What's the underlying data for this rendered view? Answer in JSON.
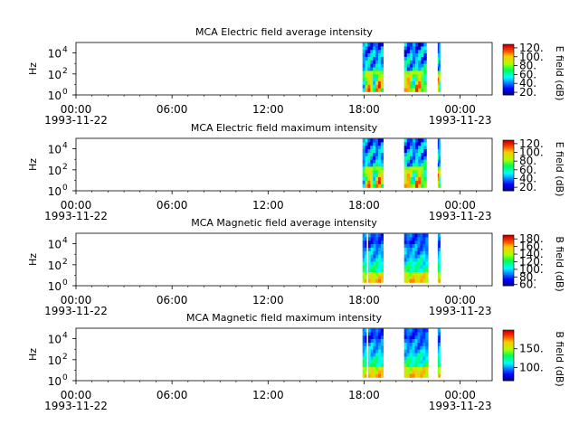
{
  "chart_data": [
    {
      "type": "heatmap",
      "title": "MCA  Electric field average intensity",
      "ylabel": "Hz",
      "y_scale": "log",
      "ylim": [
        1,
        100000
      ],
      "y_ticks": [
        {
          "value": 1,
          "base": "10",
          "exp": "0"
        },
        {
          "value": 100,
          "base": "10",
          "exp": "2"
        },
        {
          "value": 10000,
          "base": "10",
          "exp": "4"
        }
      ],
      "x_ticks": [
        {
          "hour": 0,
          "label": "00:00",
          "date": "1993-11-22"
        },
        {
          "hour": 6,
          "label": "06:00"
        },
        {
          "hour": 12,
          "label": "12:00"
        },
        {
          "hour": 18,
          "label": "18:00"
        },
        {
          "hour": 24,
          "label": "00:00",
          "date": "1993-11-23"
        }
      ],
      "data_intervals_hours": [
        [
          17.9,
          19.2
        ],
        [
          20.5,
          21.9
        ],
        [
          22.6,
          22.75
        ]
      ],
      "colorbar": {
        "label": "E field (dB)",
        "range": [
          14,
          128
        ],
        "ticks": [
          "20.",
          "40.",
          "60.",
          "80.",
          "100.",
          "120."
        ],
        "tick_values": [
          20,
          40,
          60,
          80,
          100,
          120
        ]
      },
      "intensity_profile": "high-low"
    },
    {
      "type": "heatmap",
      "title": "MCA  Electric field maximum intensity",
      "ylabel": "Hz",
      "y_scale": "log",
      "ylim": [
        1,
        100000
      ],
      "y_ticks": [
        {
          "value": 1,
          "base": "10",
          "exp": "0"
        },
        {
          "value": 100,
          "base": "10",
          "exp": "2"
        },
        {
          "value": 10000,
          "base": "10",
          "exp": "4"
        }
      ],
      "x_ticks": [
        {
          "hour": 0,
          "label": "00:00",
          "date": "1993-11-22"
        },
        {
          "hour": 6,
          "label": "06:00"
        },
        {
          "hour": 12,
          "label": "12:00"
        },
        {
          "hour": 18,
          "label": "18:00"
        },
        {
          "hour": 24,
          "label": "00:00",
          "date": "1993-11-23"
        }
      ],
      "data_intervals_hours": [
        [
          17.9,
          19.2
        ],
        [
          20.5,
          21.9
        ],
        [
          22.6,
          22.75
        ]
      ],
      "colorbar": {
        "label": "E field (dB)",
        "range": [
          12,
          128
        ],
        "ticks": [
          "20.",
          "40.",
          "60.",
          "80.",
          "100.",
          "120."
        ],
        "tick_values": [
          20,
          40,
          60,
          80,
          100,
          120
        ]
      },
      "intensity_profile": "high-low"
    },
    {
      "type": "heatmap",
      "title": "MCA  Magnetic field average intensity",
      "ylabel": "Hz",
      "y_scale": "log",
      "ylim": [
        1,
        100000
      ],
      "y_ticks": [
        {
          "value": 1,
          "base": "10",
          "exp": "0"
        },
        {
          "value": 100,
          "base": "10",
          "exp": "2"
        },
        {
          "value": 10000,
          "base": "10",
          "exp": "4"
        }
      ],
      "x_ticks": [
        {
          "hour": 0,
          "label": "00:00",
          "date": "1993-11-22"
        },
        {
          "hour": 6,
          "label": "06:00"
        },
        {
          "hour": 12,
          "label": "12:00"
        },
        {
          "hour": 18,
          "label": "18:00"
        },
        {
          "hour": 24,
          "label": "00:00",
          "date": "1993-11-23"
        }
      ],
      "data_intervals_hours": [
        [
          17.9,
          18.15
        ],
        [
          18.25,
          19.2
        ],
        [
          20.5,
          22.0
        ],
        [
          22.6,
          22.75
        ]
      ],
      "colorbar": {
        "label": "B field (dB)",
        "range": [
          57,
          190
        ],
        "ticks": [
          "60.",
          "80.",
          "100.",
          "120.",
          "140.",
          "160.",
          "180."
        ],
        "tick_values": [
          60,
          80,
          100,
          120,
          140,
          160,
          180
        ]
      },
      "intensity_profile": "low-high"
    },
    {
      "type": "heatmap",
      "title": "MCA  Magnetic field maximum intensity",
      "ylabel": "Hz",
      "y_scale": "log",
      "ylim": [
        1,
        100000
      ],
      "y_ticks": [
        {
          "value": 1,
          "base": "10",
          "exp": "0"
        },
        {
          "value": 100,
          "base": "10",
          "exp": "2"
        },
        {
          "value": 10000,
          "base": "10",
          "exp": "4"
        }
      ],
      "x_ticks": [
        {
          "hour": 0,
          "label": "00:00",
          "date": "1993-11-22"
        },
        {
          "hour": 6,
          "label": "06:00"
        },
        {
          "hour": 12,
          "label": "12:00"
        },
        {
          "hour": 18,
          "label": "18:00"
        },
        {
          "hour": 24,
          "label": "00:00",
          "date": "1993-11-23"
        }
      ],
      "data_intervals_hours": [
        [
          17.9,
          18.15
        ],
        [
          18.25,
          19.2
        ],
        [
          20.5,
          22.0
        ],
        [
          22.6,
          22.75
        ]
      ],
      "colorbar": {
        "label": "B field (dB)",
        "range": [
          65,
          200
        ],
        "ticks": [
          "100.",
          "150."
        ],
        "tick_values": [
          100,
          150
        ]
      },
      "intensity_profile": "low-high"
    }
  ]
}
